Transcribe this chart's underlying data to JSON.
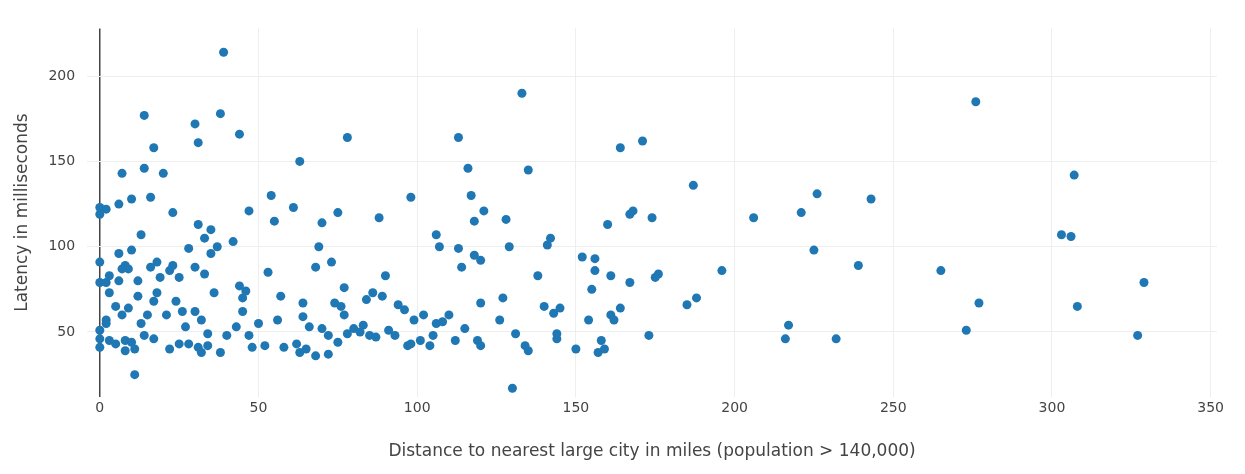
{
  "chart_data": {
    "type": "scatter",
    "xlabel": "Distance to nearest large city in miles (population > 140,000)",
    "ylabel": "Latency in milliseconds",
    "xlim": [
      -4,
      352
    ],
    "ylim": [
      12,
      228
    ],
    "xticks": [
      0,
      50,
      100,
      150,
      200,
      250,
      300,
      350
    ],
    "yticks": [
      50,
      100,
      150,
      200
    ],
    "grid": true,
    "marker": "circle",
    "series": [
      {
        "color": "#1f77b4",
        "x": [
          0,
          0,
          2,
          0,
          0,
          2,
          3,
          3,
          2,
          2,
          0,
          0,
          0,
          3,
          5,
          5,
          6,
          6,
          7,
          7,
          6,
          7,
          8,
          8,
          8,
          9,
          9,
          10,
          10,
          10,
          11,
          11,
          12,
          12,
          13,
          13,
          14,
          14,
          14,
          15,
          16,
          16,
          17,
          17,
          17,
          18,
          18,
          19,
          20,
          21,
          22,
          22,
          23,
          23,
          24,
          25,
          25,
          26,
          27,
          28,
          28,
          30,
          30,
          30,
          31,
          31,
          31,
          32,
          32,
          33,
          33,
          34,
          34,
          35,
          35,
          36,
          37,
          38,
          38,
          39,
          40,
          42,
          43,
          44,
          44,
          45,
          45,
          46,
          47,
          47,
          48,
          50,
          52,
          53,
          54,
          55,
          56,
          57,
          58,
          61,
          62,
          63,
          63,
          64,
          64,
          65,
          66,
          68,
          68,
          69,
          70,
          70,
          72,
          72,
          73,
          74,
          75,
          75,
          76,
          77,
          77,
          78,
          78,
          80,
          82,
          83,
          84,
          85,
          86,
          87,
          88,
          89,
          90,
          91,
          93,
          94,
          96,
          97,
          98,
          98,
          99,
          101,
          102,
          104,
          105,
          106,
          107,
          106,
          108,
          110,
          112,
          113,
          113,
          114,
          115,
          116,
          117,
          118,
          118,
          119,
          120,
          120,
          121,
          120,
          126,
          127,
          128,
          129,
          130,
          131,
          133,
          134,
          135,
          135,
          138,
          140,
          141,
          142,
          143,
          144,
          145,
          144,
          150,
          152,
          154,
          155,
          156,
          156,
          157,
          158,
          159,
          160,
          161,
          161,
          162,
          164,
          164,
          167,
          167,
          168,
          171,
          173,
          174,
          175,
          176,
          185,
          187,
          188,
          196,
          206,
          216,
          217,
          221,
          225,
          226,
          232,
          239,
          243,
          265,
          273,
          276,
          277,
          303,
          306,
          307,
          308,
          327,
          329
        ],
        "values": [
          123,
          119,
          122,
          91,
          79,
          79,
          83,
          73,
          57,
          55,
          51,
          46,
          41,
          45,
          65,
          43,
          96,
          125,
          143,
          87,
          80,
          60,
          89,
          45,
          39,
          87,
          64,
          128,
          98,
          44,
          25,
          40,
          80,
          71,
          107,
          55,
          146,
          177,
          48,
          60,
          88,
          129,
          158,
          68,
          46,
          73,
          91,
          82,
          143,
          60,
          40,
          86,
          120,
          89,
          68,
          43,
          82,
          62,
          53,
          43,
          99,
          172,
          62,
          88,
          161,
          113,
          41,
          38,
          57,
          84,
          105,
          49,
          42,
          96,
          110,
          73,
          100,
          178,
          38,
          214,
          48,
          103,
          53,
          166,
          77,
          70,
          62,
          74,
          121,
          48,
          41,
          55,
          42,
          85,
          130,
          115,
          57,
          71,
          41,
          123,
          43,
          150,
          38,
          67,
          59,
          40,
          53,
          36,
          88,
          100,
          114,
          52,
          37,
          48,
          91,
          67,
          120,
          44,
          65,
          60,
          76,
          164,
          49,
          52,
          50,
          54,
          69,
          48,
          73,
          47,
          117,
          71,
          83,
          51,
          48,
          66,
          63,
          42,
          129,
          43,
          57,
          45,
          60,
          42,
          48,
          107,
          100,
          55,
          56,
          60,
          45,
          164,
          99,
          88,
          52,
          146,
          130,
          115,
          95,
          45,
          92,
          67,
          121,
          42,
          57,
          70,
          116,
          100,
          17,
          49,
          190,
          42,
          39,
          145,
          83,
          65,
          101,
          105,
          61,
          49,
          64,
          46,
          40,
          94,
          57,
          75,
          93,
          86,
          38,
          45,
          40,
          113,
          83,
          60,
          57,
          64,
          158,
          79,
          119,
          121,
          162,
          48,
          117,
          82,
          84,
          66,
          136,
          70,
          86,
          117,
          46,
          54,
          120,
          98,
          131,
          46,
          89,
          128,
          86,
          51,
          185,
          67,
          107,
          106,
          142,
          65,
          48,
          79
        ]
      }
    ]
  }
}
